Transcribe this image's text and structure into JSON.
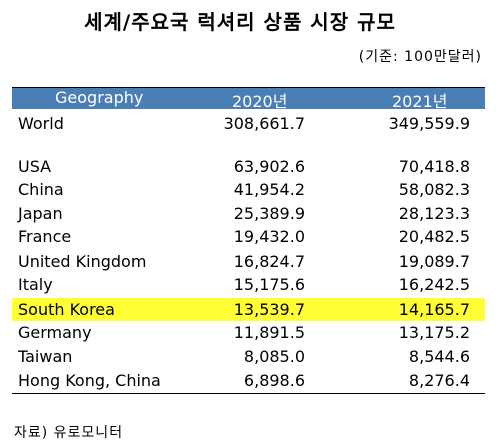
{
  "header": {
    "title": "세계/주요국 럭셔리 상품 시장 규모",
    "unit": "(기준: 100만달러)"
  },
  "table": {
    "columns": [
      "Geography",
      "2020년",
      "2021년"
    ],
    "world": [
      "World",
      "308,661.7",
      "349,559.9"
    ],
    "rows": [
      [
        "USA",
        "63,902.6",
        "70,418.8"
      ],
      [
        "China",
        "41,954.2",
        "58,082.3"
      ],
      [
        "Japan",
        "25,389.9",
        "28,123.3"
      ],
      [
        "France",
        "19,432.0",
        "20,482.5"
      ],
      [
        "United Kingdom",
        "16,824.7",
        "19,089.7"
      ],
      [
        "Italy",
        "15,175.6",
        "16,242.5"
      ],
      [
        "South Korea",
        "13,539.7",
        "14,165.7"
      ],
      [
        "Germany",
        "11,891.5",
        "13,175.2"
      ],
      [
        "Taiwan",
        "8,085.0",
        "8,544.6"
      ],
      [
        "Hong Kong, China",
        "6,898.6",
        "8,276.4"
      ]
    ]
  },
  "footer": {
    "source": "자료) 유로모니터"
  }
}
